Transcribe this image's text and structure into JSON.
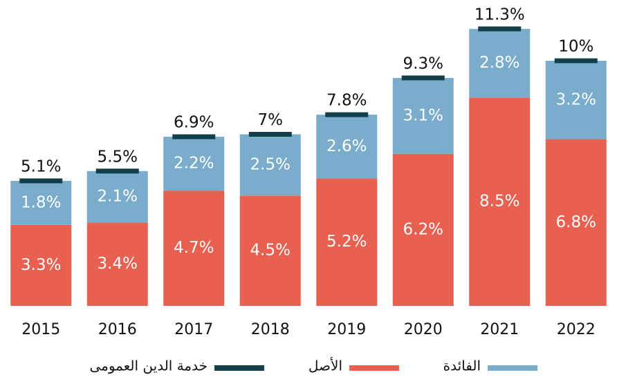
{
  "chart_data": {
    "type": "stacked-bar",
    "categories": [
      "2015",
      "2016",
      "2017",
      "2018",
      "2019",
      "2020",
      "2021",
      "2022"
    ],
    "series": [
      {
        "name": "الأصل",
        "color": "#e8604f",
        "values": [
          3.3,
          3.4,
          4.7,
          4.5,
          5.2,
          6.2,
          8.5,
          6.8
        ],
        "value_labels": [
          "3.3%",
          "3.4%",
          "4.7%",
          "4.5%",
          "5.2%",
          "6.2%",
          "8.5%",
          "6.8%"
        ]
      },
      {
        "name": "الفائدة",
        "color": "#7aaccc",
        "values": [
          1.8,
          2.1,
          2.2,
          2.5,
          2.6,
          3.1,
          2.8,
          3.2
        ],
        "value_labels": [
          "1.8%",
          "2.1%",
          "2.2%",
          "2.5%",
          "2.6%",
          "3.1%",
          "2.8%",
          "3.2%"
        ]
      },
      {
        "name": "خدمة الدين العمومى",
        "color": "#123f4a",
        "values": [
          5.1,
          5.5,
          6.9,
          7,
          7.8,
          9.3,
          11.3,
          10
        ],
        "value_labels": [
          "5.1%",
          "5.5%",
          "6.9%",
          "7%",
          "7.8%",
          "9.3%",
          "11.3%",
          "10%"
        ]
      }
    ]
  }
}
